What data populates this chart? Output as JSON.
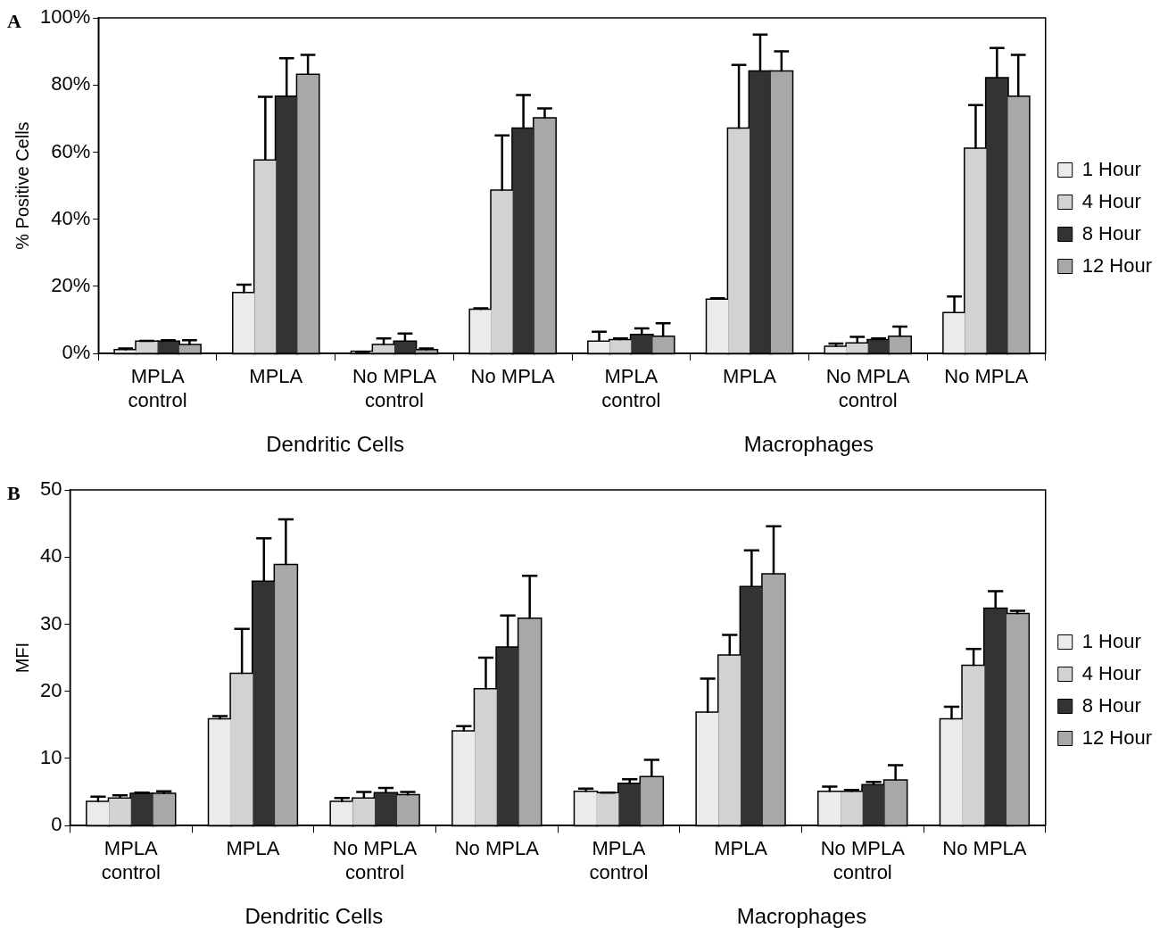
{
  "chart_data": [
    {
      "type": "bar",
      "title": "A",
      "ylabel": "% Positive Cells",
      "categories": [
        "MPLA\ncontrol",
        "MPLA",
        "No MPLA\ncontrol",
        "No MPLA",
        "MPLA\ncontrol",
        "MPLA",
        "No MPLA\ncontrol",
        "No MPLA"
      ],
      "series": [
        {
          "name": "1 Hour",
          "color": "#ebebeb",
          "values": [
            1,
            18,
            0.5,
            13,
            3.5,
            16,
            2,
            12
          ],
          "errors": [
            [
              1,
              1.5
            ],
            [
              18,
              20.5
            ],
            [
              0.5,
              0.5
            ],
            [
              13,
              13.5
            ],
            [
              3.5,
              6.5
            ],
            [
              16,
              16.5
            ],
            [
              2,
              3
            ],
            [
              12,
              17
            ]
          ]
        },
        {
          "name": "4 Hour",
          "color": "#d2d2d2",
          "values": [
            3.5,
            57.5,
            2.5,
            48.5,
            4,
            67,
            3,
            61
          ],
          "errors": [
            [
              3.5,
              3.8
            ],
            [
              57.5,
              76.5
            ],
            [
              2.5,
              4.5
            ],
            [
              48.5,
              65
            ],
            [
              4,
              4.5
            ],
            [
              67,
              86
            ],
            [
              3,
              5
            ],
            [
              61,
              74
            ]
          ]
        },
        {
          "name": "8 Hour",
          "color": "#333333",
          "values": [
            3.5,
            76.5,
            3.5,
            67,
            5.5,
            84,
            4,
            82
          ],
          "errors": [
            [
              3.5,
              4
            ],
            [
              76.5,
              88
            ],
            [
              3.5,
              6
            ],
            [
              67,
              77
            ],
            [
              5.5,
              7.5
            ],
            [
              84,
              95
            ],
            [
              4,
              4.5
            ],
            [
              82,
              91
            ]
          ]
        },
        {
          "name": "12 Hour",
          "color": "#a8a8a8",
          "values": [
            2.5,
            83,
            1,
            70,
            5,
            84,
            5,
            76.5
          ],
          "errors": [
            [
              2.5,
              4
            ],
            [
              83,
              89
            ],
            [
              1,
              1.5
            ],
            [
              70,
              73
            ],
            [
              5,
              9
            ],
            [
              84,
              90
            ],
            [
              5,
              8
            ],
            [
              76.5,
              89
            ]
          ]
        }
      ],
      "ylim": [
        0,
        100
      ],
      "yticks": [
        {
          "value": 0,
          "label": "0%"
        },
        {
          "value": 20,
          "label": "20%"
        },
        {
          "value": 40,
          "label": "40%"
        },
        {
          "value": 60,
          "label": "60%"
        },
        {
          "value": 80,
          "label": "80%"
        },
        {
          "value": 100,
          "label": "100%"
        }
      ],
      "annotations": [
        "Dendritic Cells",
        "Macrophages"
      ],
      "legend": "right",
      "grid": false
    },
    {
      "type": "bar",
      "title": "B",
      "ylabel": "MFI",
      "categories": [
        "MPLA\ncontrol",
        "MPLA",
        "No MPLA\ncontrol",
        "No MPLA",
        "MPLA\ncontrol",
        "MPLA",
        "No MPLA\ncontrol",
        "No MPLA"
      ],
      "series": [
        {
          "name": "1 Hour",
          "color": "#ebebeb",
          "values": [
            3.5,
            15.8,
            3.5,
            14,
            5,
            16.8,
            5,
            15.8
          ],
          "errors": [
            [
              3.5,
              4.3
            ],
            [
              15.8,
              16.3
            ],
            [
              3.5,
              4.1
            ],
            [
              14,
              14.8
            ],
            [
              5,
              5.5
            ],
            [
              16.8,
              21.9
            ],
            [
              5,
              5.8
            ],
            [
              15.8,
              17.7
            ]
          ]
        },
        {
          "name": "4 Hour",
          "color": "#d2d2d2",
          "values": [
            4,
            22.6,
            4,
            20.3,
            4.8,
            25.3,
            5,
            23.8
          ],
          "errors": [
            [
              4,
              4.5
            ],
            [
              22.6,
              29.3
            ],
            [
              4,
              5
            ],
            [
              20.3,
              25
            ],
            [
              4.8,
              4.9
            ],
            [
              25.3,
              28.4
            ],
            [
              5,
              5.3
            ],
            [
              23.8,
              26.3
            ]
          ]
        },
        {
          "name": "8 Hour",
          "color": "#333333",
          "values": [
            4.7,
            36.3,
            4.8,
            26.5,
            6.2,
            35.5,
            6,
            32.3
          ],
          "errors": [
            [
              4.7,
              4.9
            ],
            [
              36.3,
              42.8
            ],
            [
              4.8,
              5.6
            ],
            [
              26.5,
              31.3
            ],
            [
              6.2,
              6.9
            ],
            [
              35.5,
              41
            ],
            [
              6,
              6.5
            ],
            [
              32.3,
              34.9
            ]
          ]
        },
        {
          "name": "12 Hour",
          "color": "#a8a8a8",
          "values": [
            4.7,
            38.8,
            4.5,
            30.8,
            7.2,
            37.4,
            6.7,
            31.5
          ],
          "errors": [
            [
              4.7,
              5.1
            ],
            [
              38.8,
              45.6
            ],
            [
              4.5,
              5
            ],
            [
              30.8,
              37.2
            ],
            [
              7.2,
              9.8
            ],
            [
              37.4,
              44.6
            ],
            [
              6.7,
              9
            ],
            [
              31.5,
              32
            ]
          ]
        }
      ],
      "ylim": [
        0,
        50
      ],
      "yticks": [
        0,
        10,
        20,
        30,
        40,
        50
      ],
      "annotations": [
        "Dendritic Cells",
        "Macrophages"
      ],
      "legend": "right",
      "grid": false
    }
  ]
}
